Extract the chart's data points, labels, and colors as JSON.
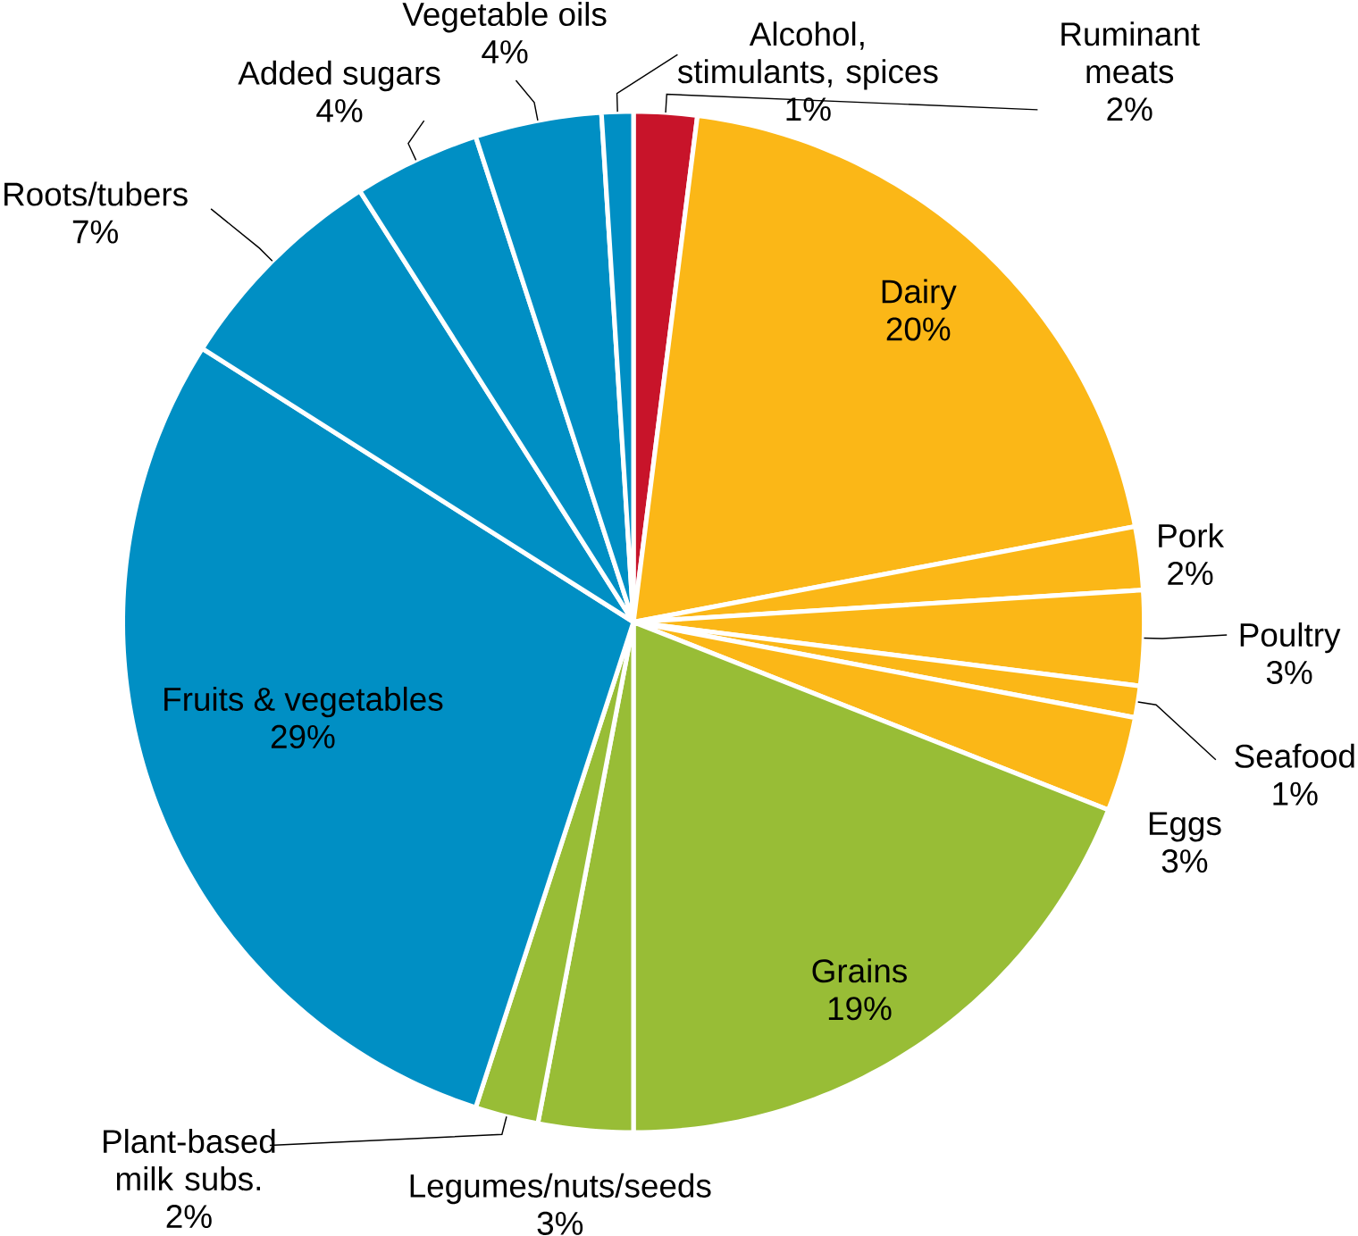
{
  "chart_data": {
    "type": "pie",
    "categories": [
      "Ruminant meats",
      "Dairy",
      "Pork",
      "Poultry",
      "Seafood",
      "Eggs",
      "Grains",
      "Legumes/nuts/seeds",
      "Plant-based milk subs.",
      "Fruits & vegetables",
      "Roots/tubers",
      "Added sugars",
      "Vegetable oils",
      "Alcohol, stimulants, spices"
    ],
    "values": [
      2,
      20,
      2,
      3,
      1,
      3,
      19,
      3,
      2,
      29,
      7,
      4,
      4,
      1
    ],
    "value_labels": [
      "2%",
      "20%",
      "2%",
      "3%",
      "1%",
      "3%",
      "19%",
      "3%",
      "2%",
      "29%",
      "7%",
      "4%",
      "4%",
      "1%"
    ],
    "colors": [
      "#c8142a",
      "#fbb717",
      "#fbb717",
      "#fbb717",
      "#fbb717",
      "#fbb717",
      "#98bd36",
      "#98bd36",
      "#98bd36",
      "#008fc4",
      "#008fc4",
      "#008fc4",
      "#008fc4",
      "#008fc4"
    ]
  }
}
